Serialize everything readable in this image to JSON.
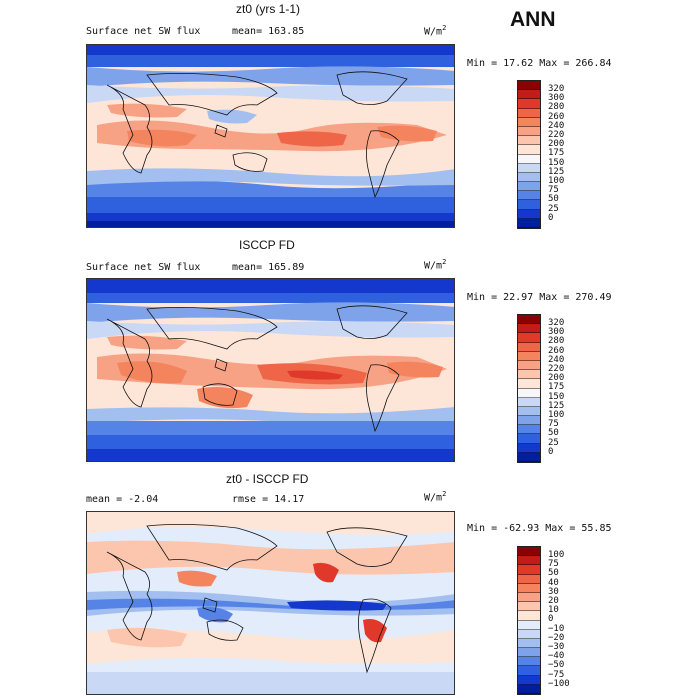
{
  "season_label": "ANN",
  "units": "W/m",
  "units_superscript": "2",
  "panels": [
    {
      "title": "zt0 (yrs 1-1)",
      "left_label": "Surface net SW flux",
      "right_label": "mean=  163.85",
      "minmax": "Min =   17.62 Max =  266.84",
      "colorbar_labels": [
        "320",
        "300",
        "280",
        "260",
        "240",
        "220",
        "200",
        "175",
        "150",
        "125",
        "100",
        "75",
        "50",
        "25",
        "0"
      ],
      "colorbar_colors": [
        "#8b0000",
        "#c31c16",
        "#e0392b",
        "#ef6548",
        "#f4845e",
        "#f7a285",
        "#fbc6ad",
        "#fde6d8",
        "#f6f6fb",
        "#c8d8f5",
        "#a3bff0",
        "#7fa3eb",
        "#5683e6",
        "#2f60de",
        "#1438cc",
        "#001f9e"
      ]
    },
    {
      "title": "ISCCP FD",
      "left_label": "Surface net SW flux",
      "right_label": "mean=  165.89",
      "minmax": "Min =   22.97 Max =  270.49",
      "colorbar_labels": [
        "320",
        "300",
        "280",
        "260",
        "240",
        "220",
        "200",
        "175",
        "150",
        "125",
        "100",
        "75",
        "50",
        "25",
        "0"
      ],
      "colorbar_colors": [
        "#8b0000",
        "#c31c16",
        "#e0392b",
        "#ef6548",
        "#f4845e",
        "#f7a285",
        "#fbc6ad",
        "#fde6d8",
        "#f6f6fb",
        "#c8d8f5",
        "#a3bff0",
        "#7fa3eb",
        "#5683e6",
        "#2f60de",
        "#1438cc",
        "#001f9e"
      ]
    },
    {
      "title": "zt0 - ISCCP FD",
      "left_label": "mean =   -2.04",
      "right_label": "rmse =   14.17",
      "minmax": "Min =  -62.93 Max =   55.85",
      "colorbar_labels": [
        "100",
        "75",
        "50",
        "40",
        "30",
        "20",
        "10",
        "0",
        "−10",
        "−20",
        "−30",
        "−40",
        "−50",
        "−75",
        "−100"
      ],
      "colorbar_colors": [
        "#8b0000",
        "#c31c16",
        "#e0392b",
        "#ef6548",
        "#f4845e",
        "#f7a285",
        "#fbc6ad",
        "#fde6d8",
        "#e3ecfb",
        "#c8d8f5",
        "#a3bff0",
        "#7fa3eb",
        "#5683e6",
        "#2f60de",
        "#1438cc",
        "#001f9e"
      ]
    }
  ]
}
